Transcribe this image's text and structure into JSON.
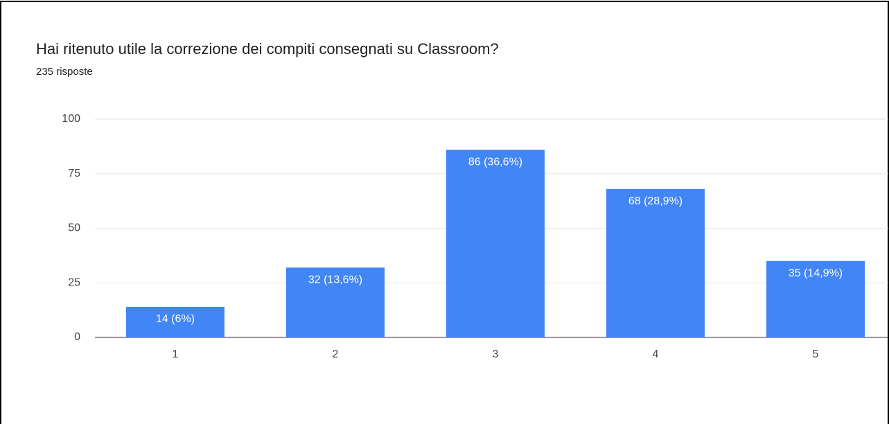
{
  "chart_data": {
    "type": "bar",
    "title": "Hai ritenuto utile la correzione dei compiti consegnati su Classroom?",
    "subtitle": "235 risposte",
    "categories": [
      "1",
      "2",
      "3",
      "4",
      "5"
    ],
    "values": [
      14,
      32,
      86,
      68,
      35
    ],
    "value_labels": [
      "14 (6%)",
      "32 (13,6%)",
      "86 (36,6%)",
      "68 (28,9%)",
      "35 (14,9%)"
    ],
    "color": "#4285f4",
    "ylim": [
      0,
      100
    ],
    "yticks": [
      0,
      25,
      50,
      75,
      100
    ],
    "grid": true
  }
}
